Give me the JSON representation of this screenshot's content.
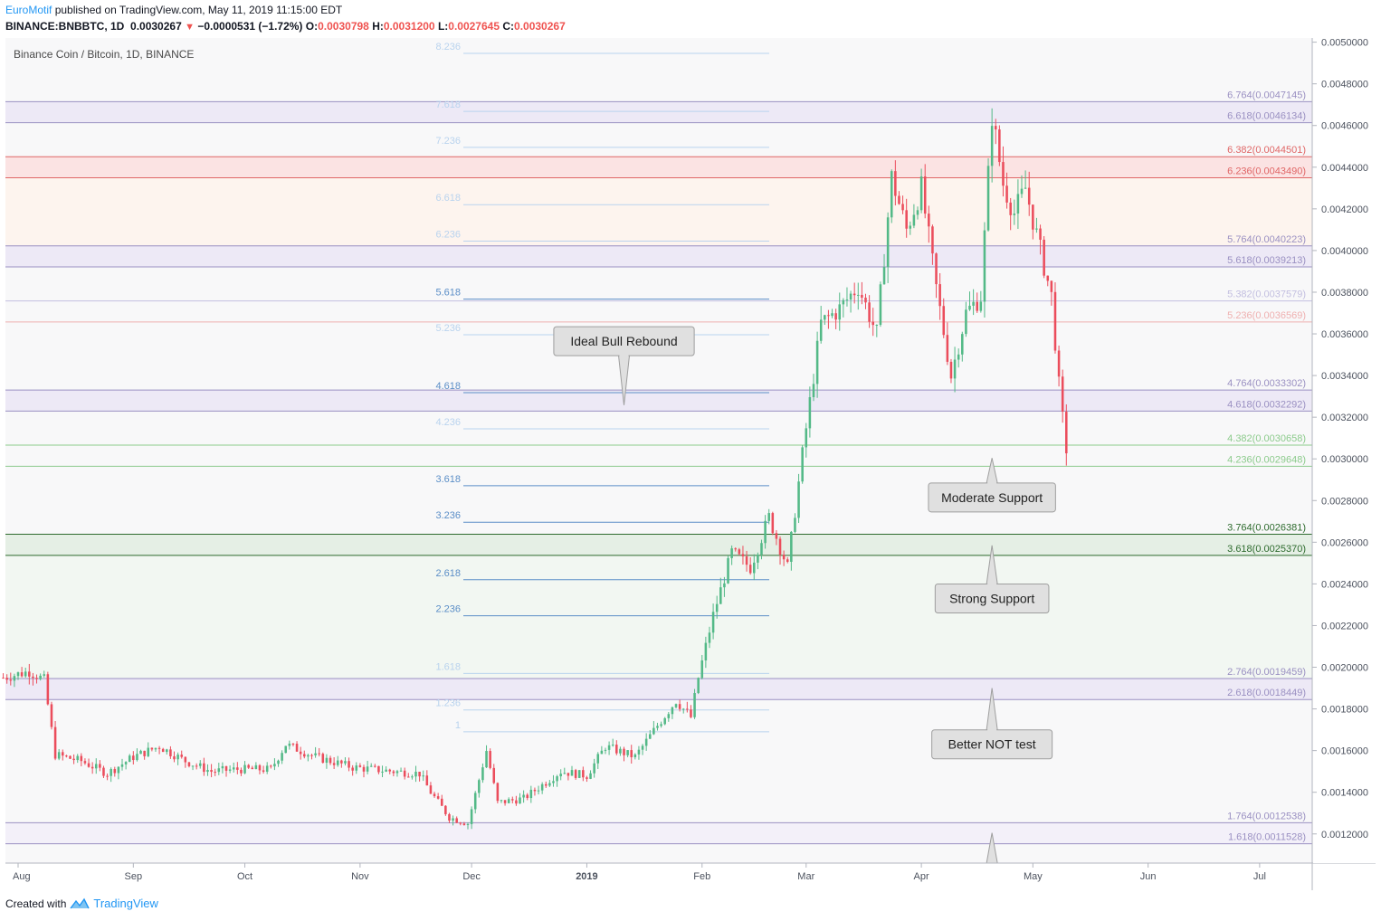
{
  "header": {
    "author": "EuroMotif",
    "published_text": "published on TradingView.com, May 11, 2019 11:15:00 EDT",
    "symbol": "BINANCE:BNBBTC, 1D",
    "last": "0.0030267",
    "change": "−0.0000531 (−1.72%)",
    "open_label": "O:",
    "open": "0.0030798",
    "high_label": "H:",
    "high": "0.0031200",
    "low_label": "L:",
    "low": "0.0027645",
    "close_label": "C:",
    "close": "0.0030267"
  },
  "footer": {
    "created_with": "Created with",
    "brand": "TradingView"
  },
  "chart_data": {
    "type": "candlestick",
    "title": "Binance Coin / Bitcoin, 1D, BINANCE",
    "ylim": [
      0.00106,
      0.00502
    ],
    "y_ticks": [
      "0.0012000",
      "0.0014000",
      "0.0016000",
      "0.0018000",
      "0.0020000",
      "0.0022000",
      "0.0024000",
      "0.0026000",
      "0.0028000",
      "0.0030000",
      "0.0032000",
      "0.0034000",
      "0.0036000",
      "0.0038000",
      "0.0040000",
      "0.0042000",
      "0.0044000",
      "0.0046000",
      "0.0048000",
      "0.0050000"
    ],
    "x_ticks": [
      "Aug",
      "Sep",
      "Oct",
      "Nov",
      "Dec",
      "2019",
      "Feb",
      "Mar",
      "Apr",
      "May",
      "Jun",
      "Jul"
    ],
    "colors": {
      "up": "#53b987",
      "down": "#eb4d5c"
    },
    "anchors": [
      [
        "2018-07-28",
        0.00195
      ],
      [
        "2018-08-04",
        0.00198
      ],
      [
        "2018-08-08",
        0.00194
      ],
      [
        "2018-08-11",
        0.00158
      ],
      [
        "2018-08-18",
        0.00155
      ],
      [
        "2018-08-25",
        0.00149
      ],
      [
        "2018-09-01",
        0.00157
      ],
      [
        "2018-09-08",
        0.00162
      ],
      [
        "2018-09-15",
        0.00155
      ],
      [
        "2018-09-22",
        0.0015
      ],
      [
        "2018-09-29",
        0.00151
      ],
      [
        "2018-10-08",
        0.00151
      ],
      [
        "2018-10-12",
        0.00163
      ],
      [
        "2018-10-20",
        0.00157
      ],
      [
        "2018-10-30",
        0.00152
      ],
      [
        "2018-11-10",
        0.0015
      ],
      [
        "2018-11-17",
        0.00149
      ],
      [
        "2018-11-20",
        0.0014
      ],
      [
        "2018-11-25",
        0.00128
      ],
      [
        "2018-11-30",
        0.00125
      ],
      [
        "2018-12-05",
        0.0016
      ],
      [
        "2018-12-08",
        0.00135
      ],
      [
        "2018-12-15",
        0.00137
      ],
      [
        "2018-12-25",
        0.0015
      ],
      [
        "2019-01-01",
        0.00148
      ],
      [
        "2019-01-06",
        0.00162
      ],
      [
        "2019-01-14",
        0.00157
      ],
      [
        "2019-01-20",
        0.00172
      ],
      [
        "2019-01-25",
        0.00184
      ],
      [
        "2019-01-29",
        0.00176
      ],
      [
        "2019-01-31",
        0.00195
      ],
      [
        "2019-02-04",
        0.00225
      ],
      [
        "2019-02-09",
        0.00255
      ],
      [
        "2019-02-14",
        0.00248
      ],
      [
        "2019-02-19",
        0.00272
      ],
      [
        "2019-02-24",
        0.00248
      ],
      [
        "2019-02-28",
        0.00302
      ],
      [
        "2019-03-05",
        0.00365
      ],
      [
        "2019-03-10",
        0.00372
      ],
      [
        "2019-03-15",
        0.00383
      ],
      [
        "2019-03-20",
        0.0036
      ],
      [
        "2019-03-24",
        0.00435
      ],
      [
        "2019-03-28",
        0.0041
      ],
      [
        "2019-04-01",
        0.0043
      ],
      [
        "2019-04-05",
        0.00382
      ],
      [
        "2019-04-09",
        0.0034
      ],
      [
        "2019-04-13",
        0.0037
      ],
      [
        "2019-04-17",
        0.00378
      ],
      [
        "2019-04-20",
        0.00465
      ],
      [
        "2019-04-23",
        0.00432
      ],
      [
        "2019-04-26",
        0.00418
      ],
      [
        "2019-04-29",
        0.0043
      ],
      [
        "2019-05-03",
        0.004
      ],
      [
        "2019-05-06",
        0.00378
      ],
      [
        "2019-05-08",
        0.00335
      ],
      [
        "2019-05-10",
        0.00303
      ]
    ],
    "dashed_levels": [
      {
        "label": "8.236",
        "y": 0.004946
      },
      {
        "label": "7.618",
        "y": 0.004668
      },
      {
        "label": "7.236",
        "y": 0.004495
      },
      {
        "label": "6.618",
        "y": 0.00422
      },
      {
        "label": "6.236",
        "y": 0.004045
      },
      {
        "label": "5.618",
        "y": 0.003767,
        "em": true
      },
      {
        "label": "5.236",
        "y": 0.003596
      },
      {
        "label": "4.618",
        "y": 0.003318,
        "em": true
      },
      {
        "label": "4.236",
        "y": 0.003144
      },
      {
        "label": "3.618",
        "y": 0.002871,
        "em": true
      },
      {
        "label": "3.236",
        "y": 0.002696,
        "em": true
      },
      {
        "label": "2.618",
        "y": 0.00242,
        "em": true
      },
      {
        "label": "2.236",
        "y": 0.002247,
        "em": true
      },
      {
        "label": "1.618",
        "y": 0.00197
      },
      {
        "label": "1.236",
        "y": 0.001795
      },
      {
        "label": "1",
        "y": 0.00169
      }
    ],
    "right_levels": [
      {
        "label": "6.764(0.0047145)",
        "y": 0.0047145,
        "color": "#9a90c2"
      },
      {
        "label": "6.618(0.0046134)",
        "y": 0.0046134,
        "color": "#9a90c2"
      },
      {
        "label": "6.382(0.0044501)",
        "y": 0.0044501,
        "color": "#e06666"
      },
      {
        "label": "6.236(0.0043490)",
        "y": 0.004349,
        "color": "#e06666"
      },
      {
        "label": "5.764(0.0040223)",
        "y": 0.0040223,
        "color": "#9a90c2"
      },
      {
        "label": "5.618(0.0039213)",
        "y": 0.0039213,
        "color": "#9a90c2"
      },
      {
        "label": "5.382(0.0037579)",
        "y": 0.0037579,
        "color": "#c3bfe0"
      },
      {
        "label": "5.236(0.0036569)",
        "y": 0.0036569,
        "color": "#efb0b0"
      },
      {
        "label": "4.764(0.0033302)",
        "y": 0.0033302,
        "color": "#9a90c2"
      },
      {
        "label": "4.618(0.0032292)",
        "y": 0.0032292,
        "color": "#9a90c2"
      },
      {
        "label": "4.382(0.0030658)",
        "y": 0.0030658,
        "color": "#8ccb8c"
      },
      {
        "label": "4.236(0.0029648)",
        "y": 0.0029648,
        "color": "#8ccb8c"
      },
      {
        "label": "3.764(0.0026381)",
        "y": 0.0026381,
        "color": "#2e6b2e"
      },
      {
        "label": "3.618(0.0025370)",
        "y": 0.002537,
        "color": "#2e6b2e"
      },
      {
        "label": "2.764(0.0019459)",
        "y": 0.0019459,
        "color": "#9a90c2"
      },
      {
        "label": "2.618(0.0018449)",
        "y": 0.0018449,
        "color": "#9a90c2"
      },
      {
        "label": "1.764(0.0012538)",
        "y": 0.0012538,
        "color": "#9a90c2"
      },
      {
        "label": "1.618(0.0011528)",
        "y": 0.0011528,
        "color": "#9a90c2"
      }
    ],
    "bands": [
      {
        "from": 0.0046134,
        "to": 0.0047145,
        "color": "#ede9f6"
      },
      {
        "from": 0.004349,
        "to": 0.0044501,
        "color": "#fbe3e3"
      },
      {
        "from": 0.0040223,
        "to": 0.004349,
        "color": "#fdf4ee"
      },
      {
        "from": 0.0039213,
        "to": 0.0040223,
        "color": "#ede9f6"
      },
      {
        "from": 0.0032292,
        "to": 0.0033302,
        "color": "#ede9f6"
      },
      {
        "from": 0.002537,
        "to": 0.0026381,
        "color": "#e5efe5"
      },
      {
        "from": 0.0019459,
        "to": 0.002537,
        "color": "#f2f7f2"
      },
      {
        "from": 0.0018449,
        "to": 0.0019459,
        "color": "#ede9f6"
      },
      {
        "from": 0.0011528,
        "to": 0.0012538,
        "color": "#f3f0f9"
      }
    ],
    "annotations": [
      {
        "text": "Ideal Bull Rebound",
        "date": "2019-01-11",
        "y": 0.003565,
        "pointer": "down",
        "tip_y": 0.003258
      },
      {
        "text": "Moderate Support",
        "date": "2019-04-20",
        "y": 0.002815,
        "pointer": "up",
        "tip_y": 0.003004
      },
      {
        "text": "Strong Support",
        "date": "2019-04-20",
        "y": 0.00233,
        "pointer": "up",
        "tip_y": 0.002585
      },
      {
        "text": "Better NOT test",
        "date": "2019-04-20",
        "y": 0.00163,
        "pointer": "up",
        "tip_y": 0.0019
      },
      {
        "text": "",
        "date": "2019-04-20",
        "y": 0.00104,
        "pointer": "up",
        "tip_y": 0.001205
      }
    ]
  }
}
